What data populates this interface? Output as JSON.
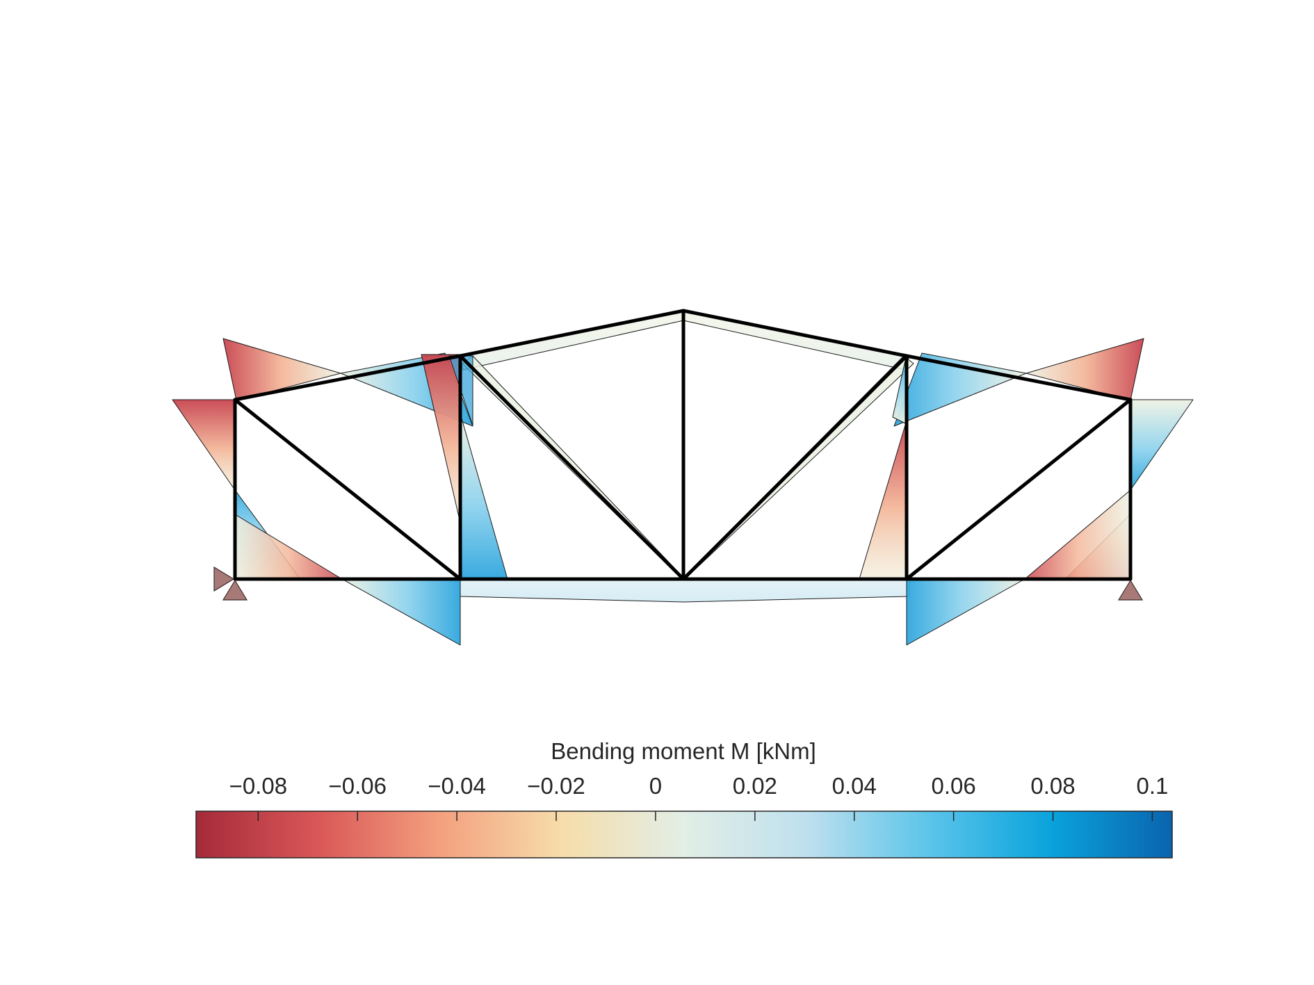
{
  "colorbar": {
    "title": "Bending moment M [kNm]",
    "ticks": [
      {
        "value": -0.08,
        "label": "−0.08"
      },
      {
        "value": -0.06,
        "label": "−0.06"
      },
      {
        "value": -0.04,
        "label": "−0.04"
      },
      {
        "value": -0.02,
        "label": "−0.02"
      },
      {
        "value": 0,
        "label": "0"
      },
      {
        "value": 0.02,
        "label": "0.02"
      },
      {
        "value": 0.04,
        "label": "0.04"
      },
      {
        "value": 0.06,
        "label": "0.06"
      },
      {
        "value": 0.08,
        "label": "0.08"
      },
      {
        "value": 0.1,
        "label": "0.1"
      }
    ],
    "range": [
      -0.0925,
      0.104
    ],
    "colormap": [
      "#a52a3a",
      "#d95757",
      "#f4a07f",
      "#f6ddaa",
      "#e2eee6",
      "#bfe0ee",
      "#5cc5ea",
      "#0aa3dc",
      "#0a64ae"
    ]
  },
  "truss": {
    "member_color": "#000000",
    "support_color": "#a87a77",
    "supports": [
      "pinned-left",
      "roller-right"
    ]
  }
}
